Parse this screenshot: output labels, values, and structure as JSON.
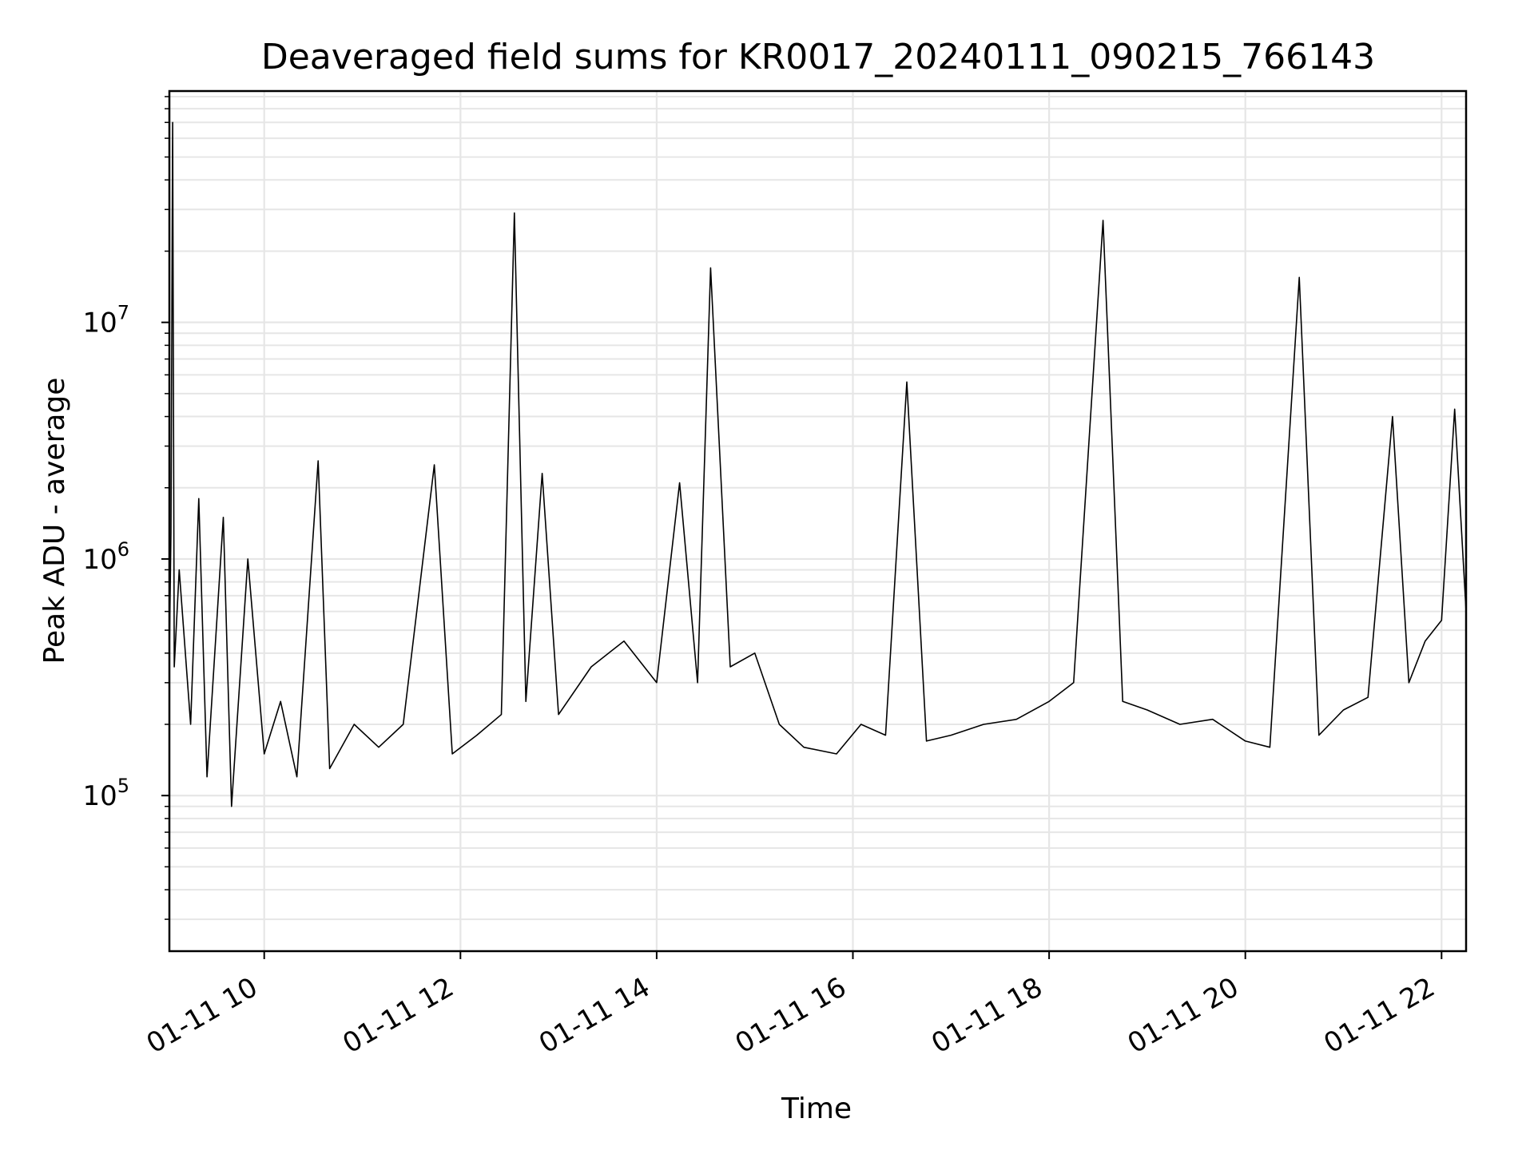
{
  "chart_data": {
    "type": "line",
    "title": "Deaveraged field sums for KR0017_20240111_090215_766143",
    "xlabel": "Time",
    "ylabel": "Peak ADU - average",
    "x_tick_labels": [
      "01-11 10",
      "01-11 12",
      "01-11 14",
      "01-11 16",
      "01-11 18",
      "01-11 20",
      "01-11 22"
    ],
    "x_ticks": [
      "2024-01-11T10:00",
      "2024-01-11T12:00",
      "2024-01-11T14:00",
      "2024-01-11T16:00",
      "2024-01-11T18:00",
      "2024-01-11T20:00",
      "2024-01-11T22:00"
    ],
    "xlim": [
      "2024-01-11T09:02",
      "2024-01-11T22:15"
    ],
    "y_scale": "log",
    "ylim": [
      22000,
      95000000
    ],
    "y_ticks": [
      100000,
      1000000,
      10000000
    ],
    "grid": true,
    "line_color": "#000000",
    "grid_color": "#e6e6e6",
    "series": [
      {
        "name": "",
        "points": [
          [
            "2024-01-11T09:02",
            400000
          ],
          [
            "2024-01-11T09:03",
            1300000
          ],
          [
            "2024-01-11T09:04",
            70000000
          ],
          [
            "2024-01-11T09:05",
            350000
          ],
          [
            "2024-01-11T09:08",
            900000
          ],
          [
            "2024-01-11T09:15",
            200000
          ],
          [
            "2024-01-11T09:20",
            1800000
          ],
          [
            "2024-01-11T09:25",
            120000
          ],
          [
            "2024-01-11T09:35",
            1500000
          ],
          [
            "2024-01-11T09:40",
            90000
          ],
          [
            "2024-01-11T09:50",
            1000000
          ],
          [
            "2024-01-11T10:00",
            150000
          ],
          [
            "2024-01-11T10:10",
            250000
          ],
          [
            "2024-01-11T10:20",
            120000
          ],
          [
            "2024-01-11T10:33",
            2600000
          ],
          [
            "2024-01-11T10:40",
            130000
          ],
          [
            "2024-01-11T10:55",
            200000
          ],
          [
            "2024-01-11T11:10",
            160000
          ],
          [
            "2024-01-11T11:25",
            200000
          ],
          [
            "2024-01-11T11:44",
            2500000
          ],
          [
            "2024-01-11T11:55",
            150000
          ],
          [
            "2024-01-11T12:10",
            180000
          ],
          [
            "2024-01-11T12:25",
            220000
          ],
          [
            "2024-01-11T12:33",
            29000000
          ],
          [
            "2024-01-11T12:40",
            250000
          ],
          [
            "2024-01-11T12:50",
            2300000
          ],
          [
            "2024-01-11T13:00",
            220000
          ],
          [
            "2024-01-11T13:20",
            350000
          ],
          [
            "2024-01-11T13:40",
            450000
          ],
          [
            "2024-01-11T14:00",
            300000
          ],
          [
            "2024-01-11T14:14",
            2100000
          ],
          [
            "2024-01-11T14:25",
            300000
          ],
          [
            "2024-01-11T14:33",
            17000000
          ],
          [
            "2024-01-11T14:45",
            350000
          ],
          [
            "2024-01-11T15:00",
            400000
          ],
          [
            "2024-01-11T15:15",
            200000
          ],
          [
            "2024-01-11T15:30",
            160000
          ],
          [
            "2024-01-11T15:50",
            150000
          ],
          [
            "2024-01-11T16:05",
            200000
          ],
          [
            "2024-01-11T16:20",
            180000
          ],
          [
            "2024-01-11T16:33",
            5600000
          ],
          [
            "2024-01-11T16:45",
            170000
          ],
          [
            "2024-01-11T17:00",
            180000
          ],
          [
            "2024-01-11T17:20",
            200000
          ],
          [
            "2024-01-11T17:40",
            210000
          ],
          [
            "2024-01-11T18:00",
            250000
          ],
          [
            "2024-01-11T18:15",
            300000
          ],
          [
            "2024-01-11T18:33",
            27000000
          ],
          [
            "2024-01-11T18:45",
            250000
          ],
          [
            "2024-01-11T19:00",
            230000
          ],
          [
            "2024-01-11T19:20",
            200000
          ],
          [
            "2024-01-11T19:40",
            210000
          ],
          [
            "2024-01-11T20:00",
            170000
          ],
          [
            "2024-01-11T20:15",
            160000
          ],
          [
            "2024-01-11T20:33",
            15500000
          ],
          [
            "2024-01-11T20:45",
            180000
          ],
          [
            "2024-01-11T21:00",
            230000
          ],
          [
            "2024-01-11T21:15",
            260000
          ],
          [
            "2024-01-11T21:30",
            4000000
          ],
          [
            "2024-01-11T21:40",
            300000
          ],
          [
            "2024-01-11T21:50",
            450000
          ],
          [
            "2024-01-11T22:00",
            550000
          ],
          [
            "2024-01-11T22:08",
            4300000
          ],
          [
            "2024-01-11T22:15",
            600000
          ]
        ]
      }
    ]
  }
}
